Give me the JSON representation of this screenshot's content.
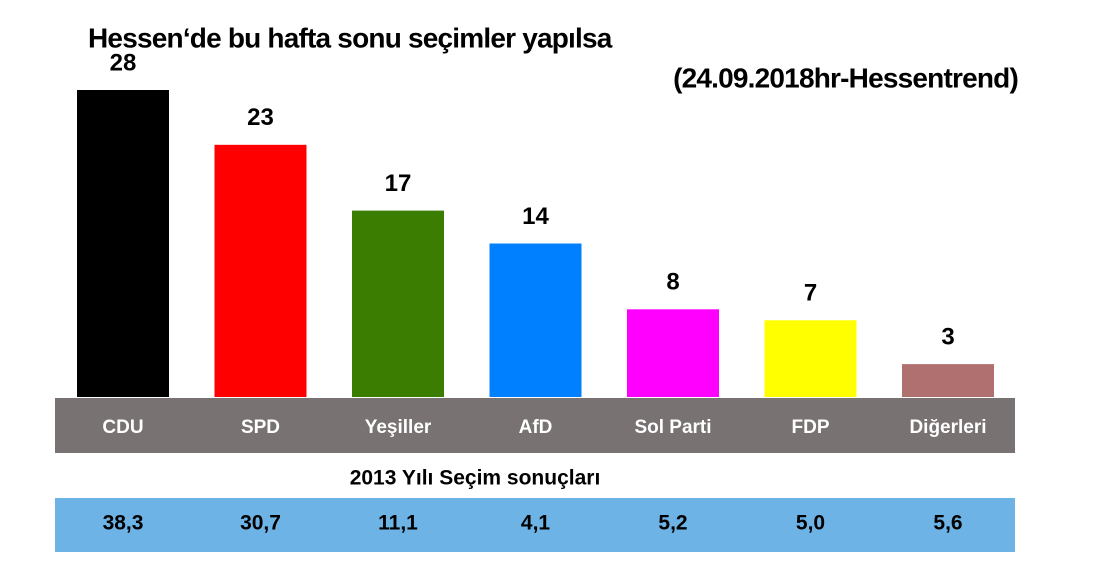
{
  "chart_data": {
    "type": "bar",
    "title": "Hessen‘de bu hafta sonu seçimler yapılsa",
    "subtitle": "(24.09.2018hr-Hessentrend)",
    "categories": [
      "CDU",
      "SPD",
      "Yeşiller",
      "AfD",
      "Sol Parti",
      "FDP",
      "Diğerleri"
    ],
    "values": [
      28,
      23,
      17,
      14,
      8,
      7,
      3
    ],
    "colors": [
      "#000000",
      "#ff0000",
      "#3a7d00",
      "#0080ff",
      "#ff00ff",
      "#ffff00",
      "#b07070"
    ],
    "previous": {
      "title": "2013 Yılı Seçim sonuçları",
      "values": [
        38.3,
        30.7,
        11.1,
        4.1,
        5.2,
        5.0,
        5.6
      ],
      "value_labels": [
        "38,3",
        "30,7",
        "11,1",
        "4,1",
        "5,2",
        "5,0",
        "5,6"
      ]
    }
  }
}
